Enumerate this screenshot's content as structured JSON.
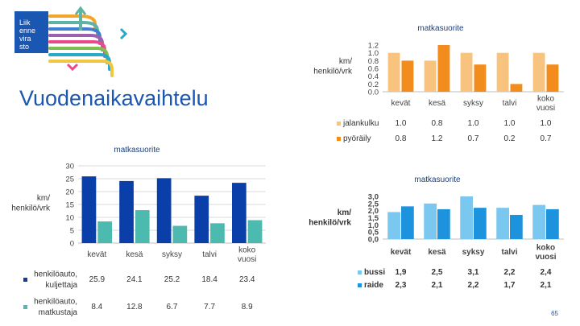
{
  "logo": {
    "lines": [
      "Liik",
      "enne",
      "vira",
      "sto"
    ],
    "colors": [
      "#f3a42b",
      "#5db3a4",
      "#3f7fd0",
      "#9d5fb0",
      "#e94a8b",
      "#7fbf4d",
      "#2aa8c9",
      "#f2c641"
    ]
  },
  "main_title": "Vuodenaikavaihtelu",
  "slide_number": "65",
  "colors": {
    "title_blue": "#1a57b3",
    "walk": "#f7c37f",
    "bike": "#f28c1c",
    "car_driver": "#0a3ea8",
    "car_passenger": "#4dbab0",
    "bus": "#7ac8ef",
    "rail": "#1c93dc"
  },
  "chart_data": [
    {
      "id": "walk-bike",
      "type": "bar",
      "title": "matkasuorite",
      "ylabel": "km/ henkilö/vrk",
      "ylabel_lines": [
        "km/",
        "henkilö/vrk"
      ],
      "ylim": [
        0,
        1.2
      ],
      "yticks": [
        "1.2",
        "1.0",
        "0.8",
        "0.6",
        "0.4",
        "0.2",
        "0.0"
      ],
      "categories": [
        "kevät",
        "kesä",
        "syksy",
        "talvi",
        "koko vuosi"
      ],
      "series": [
        {
          "name": "jalankulku",
          "values": [
            1.0,
            0.8,
            1.0,
            1.0,
            1.0
          ],
          "labels": [
            "1.0",
            "0.8",
            "1.0",
            "1.0",
            "1.0"
          ]
        },
        {
          "name": "pyöräily",
          "values": [
            0.8,
            1.2,
            0.7,
            0.2,
            0.7
          ],
          "labels": [
            "0.8",
            "1.2",
            "0.7",
            "0.2",
            "0.7"
          ]
        }
      ]
    },
    {
      "id": "car",
      "type": "bar",
      "title": "matkasuorite",
      "ylabel": "km/ henkilö/vrk",
      "ylabel_lines": [
        "km/",
        "henkilö/vrk"
      ],
      "ylim": [
        0,
        30
      ],
      "yticks": [
        "30",
        "25",
        "20",
        "15",
        "10",
        "5",
        "0"
      ],
      "categories": [
        "kevät",
        "kesä",
        "syksy",
        "talvi",
        "koko vuosi"
      ],
      "series": [
        {
          "name": "henkilöauto, kuljettaja",
          "values": [
            25.9,
            24.1,
            25.2,
            18.4,
            23.4
          ],
          "labels": [
            "25.9",
            "24.1",
            "25.2",
            "18.4",
            "23.4"
          ]
        },
        {
          "name": "henkilöauto, matkustaja",
          "values": [
            8.4,
            12.8,
            6.7,
            7.7,
            8.9
          ],
          "labels": [
            "8.4",
            "12.8",
            "6.7",
            "7.7",
            "8.9"
          ]
        }
      ]
    },
    {
      "id": "transit",
      "type": "bar",
      "title": "matkasuorite",
      "ylabel": "km/ henkilö/vrk",
      "ylabel_lines": [
        "km/",
        "henkilö/vrk"
      ],
      "ylim": [
        0,
        3.0
      ],
      "yticks": [
        "3,0",
        "2,5",
        "2,0",
        "1,5",
        "1,0",
        "0,5",
        "0,0"
      ],
      "categories": [
        "kevät",
        "kesä",
        "syksy",
        "talvi",
        "koko vuosi"
      ],
      "series": [
        {
          "name": "bussi",
          "values": [
            1.9,
            2.5,
            3.1,
            2.2,
            2.4
          ],
          "labels": [
            "1,9",
            "2,5",
            "3,1",
            "2,2",
            "2,4"
          ]
        },
        {
          "name": "raide",
          "values": [
            2.3,
            2.1,
            2.2,
            1.7,
            2.1
          ],
          "labels": [
            "2,3",
            "2,1",
            "2,2",
            "1,7",
            "2,1"
          ]
        }
      ]
    }
  ]
}
